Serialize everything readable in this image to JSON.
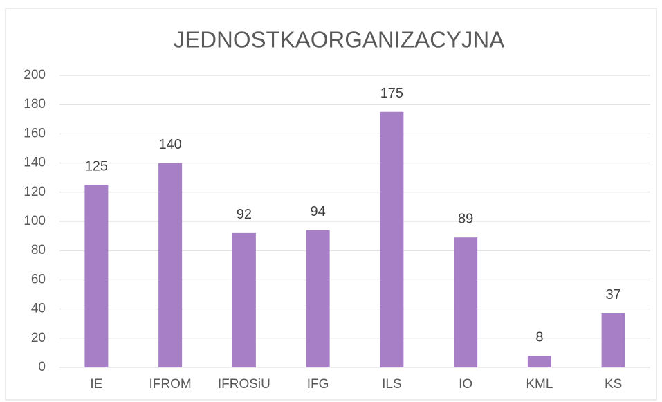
{
  "chart_data": {
    "type": "bar",
    "title": "JEDNOSTKAORGANIZACYJNA",
    "categories": [
      "IE",
      "IFROM",
      "IFROSiU",
      "IFG",
      "ILS",
      "IO",
      "KML",
      "KS"
    ],
    "values": [
      125,
      140,
      92,
      94,
      175,
      89,
      8,
      37
    ],
    "color": "#a77fc7",
    "ylim": [
      0,
      200
    ],
    "yticks": [
      0,
      20,
      40,
      60,
      80,
      100,
      120,
      140,
      160,
      180,
      200
    ],
    "grid": true,
    "data_labels": true
  }
}
